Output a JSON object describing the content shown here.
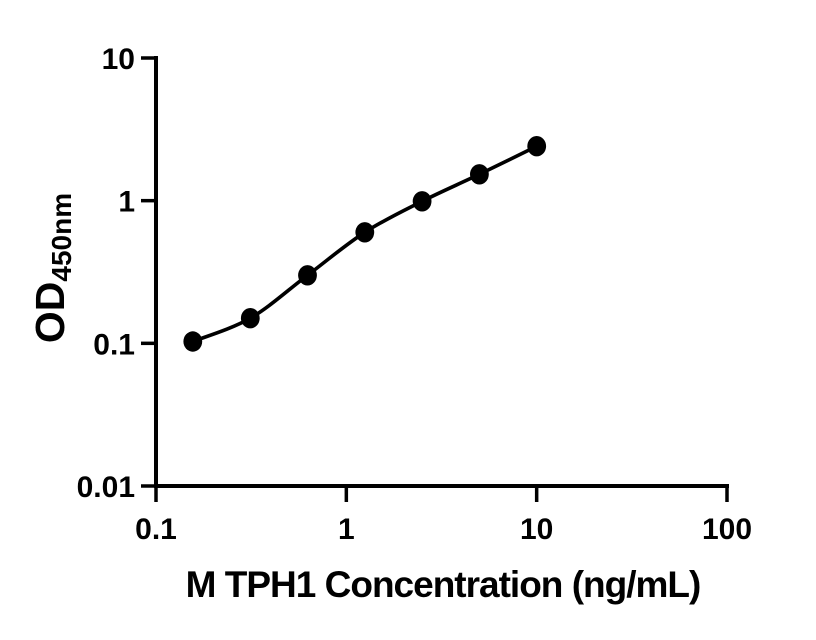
{
  "figure": {
    "background_color": "#ffffff",
    "ink_color": "#000000",
    "description": "ELISA standard curve line plot on log-log axes"
  },
  "chart_data": {
    "type": "scatter",
    "curve": "smooth-fit-line",
    "title": "",
    "xlabel": "M TPH1 Concentration (ng/mL)",
    "ylabel_main": "OD",
    "ylabel_sub": "450nm",
    "x_scale": "log10",
    "y_scale": "log10",
    "xlim": [
      0.1,
      100
    ],
    "ylim": [
      0.01,
      10
    ],
    "x_ticks": [
      {
        "value": 0.1,
        "label": "0.1"
      },
      {
        "value": 1,
        "label": "1"
      },
      {
        "value": 10,
        "label": "10"
      },
      {
        "value": 100,
        "label": "100"
      }
    ],
    "y_ticks": [
      {
        "value": 10,
        "label": "10"
      },
      {
        "value": 1,
        "label": "1"
      },
      {
        "value": 0.1,
        "label": "0.1"
      },
      {
        "value": 0.01,
        "label": "0.01"
      }
    ],
    "grid": false,
    "legend": false,
    "marker_color": "#000000",
    "line_color": "#000000",
    "points": [
      {
        "x": 0.156,
        "y": 0.103
      },
      {
        "x": 0.313,
        "y": 0.15
      },
      {
        "x": 0.625,
        "y": 0.3
      },
      {
        "x": 1.25,
        "y": 0.6
      },
      {
        "x": 2.5,
        "y": 0.99
      },
      {
        "x": 5,
        "y": 1.53
      },
      {
        "x": 10,
        "y": 2.41
      }
    ]
  }
}
